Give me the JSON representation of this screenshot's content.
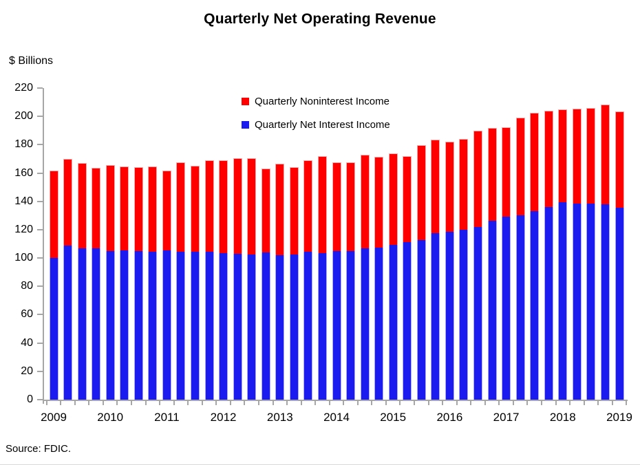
{
  "page": {
    "title": "Quarterly Net Operating Revenue",
    "units_label": "$ Billions",
    "source": "Source: FDIC."
  },
  "chart_data": {
    "type": "bar",
    "stacked": true,
    "title": "Quarterly Net Operating Revenue",
    "ylabel": "$ Billions",
    "ylim": [
      0,
      220
    ],
    "ytick_step": 20,
    "yticks": [
      0,
      20,
      40,
      60,
      80,
      100,
      120,
      140,
      160,
      180,
      200,
      220
    ],
    "grid": false,
    "legend_position": "top-center",
    "axis_color": "#a6a6a6",
    "text_color": "#000000",
    "categories": [
      "2009 Q1",
      "2009 Q2",
      "2009 Q3",
      "2009 Q4",
      "2010 Q1",
      "2010 Q2",
      "2010 Q3",
      "2010 Q4",
      "2011 Q1",
      "2011 Q2",
      "2011 Q3",
      "2011 Q4",
      "2012 Q1",
      "2012 Q2",
      "2012 Q3",
      "2012 Q4",
      "2013 Q1",
      "2013 Q2",
      "2013 Q3",
      "2013 Q4",
      "2014 Q1",
      "2014 Q2",
      "2014 Q3",
      "2014 Q4",
      "2015 Q1",
      "2015 Q2",
      "2015 Q3",
      "2015 Q4",
      "2016 Q1",
      "2016 Q2",
      "2016 Q3",
      "2016 Q4",
      "2017 Q1",
      "2017 Q2",
      "2017 Q3",
      "2017 Q4",
      "2018 Q1",
      "2018 Q2",
      "2018 Q3",
      "2018 Q4",
      "2019 Q1"
    ],
    "year_labels": [
      "2009",
      "2010",
      "2011",
      "2012",
      "2013",
      "2014",
      "2015",
      "2016",
      "2017",
      "2018",
      "2019"
    ],
    "year_label_positions": [
      0,
      4,
      8,
      12,
      16,
      20,
      24,
      28,
      32,
      36,
      40
    ],
    "series": [
      {
        "name": "Quarterly Net Interest Income",
        "color": "#1b1bef",
        "edge_color": "#a9a9f7",
        "values": [
          100,
          109,
          107,
          107,
          105,
          105.5,
          105,
          104.5,
          105.5,
          104.5,
          104.5,
          104.5,
          103.5,
          103,
          102.5,
          104,
          102,
          102.5,
          104.5,
          103.5,
          105,
          105,
          107,
          107.5,
          109.5,
          111,
          112.5,
          117.5,
          118.5,
          120,
          122,
          126.5,
          129,
          130,
          133,
          136,
          139.5,
          138.5,
          138.5,
          138,
          135.5
        ]
      },
      {
        "name": "Quarterly Noninterest Income",
        "color": "#fe0000",
        "edge_color": "#ffabab",
        "values": [
          61.5,
          61,
          60,
          56.5,
          60.5,
          59,
          59,
          60,
          56,
          63,
          60.5,
          64.5,
          65.5,
          67.5,
          68,
          59,
          64.5,
          61.5,
          64.5,
          68.5,
          62.5,
          62.5,
          66,
          64,
          64.5,
          61,
          67,
          66,
          63.5,
          64,
          68,
          65.5,
          63.5,
          69,
          69.5,
          68,
          65.5,
          67,
          67.5,
          70.5,
          68
        ]
      }
    ],
    "totals": [
      161.5,
      170,
      167,
      163.5,
      165.5,
      164.5,
      164,
      164.5,
      161.5,
      167.5,
      165,
      169,
      169,
      170.5,
      170.5,
      163,
      166.5,
      164,
      169,
      172,
      167.5,
      167.5,
      173,
      171.5,
      174,
      172,
      179.5,
      183.5,
      182,
      184,
      190,
      192,
      192.5,
      199,
      202.5,
      204,
      205,
      205.5,
      206,
      208.5,
      203.5
    ],
    "legend": [
      {
        "label": "Quarterly Noninterest Income",
        "color": "#fe0000"
      },
      {
        "label": "Quarterly Net Interest Income",
        "color": "#1b1bef"
      }
    ]
  }
}
